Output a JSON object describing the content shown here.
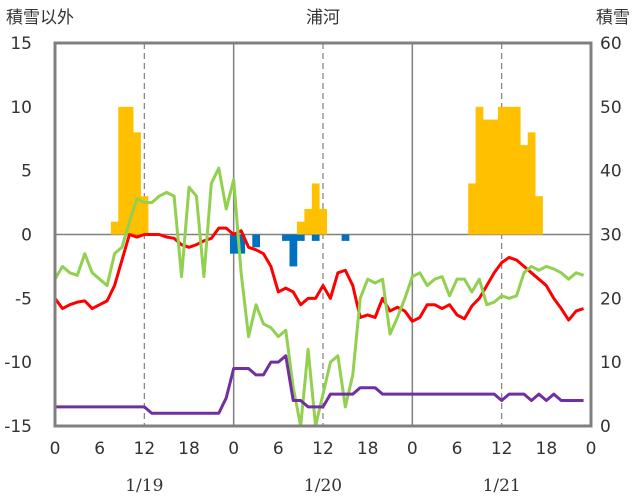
{
  "chart_data": {
    "type": "bar+line",
    "title": "浦河",
    "y_left_label": "積雪以外",
    "y_right_label": "積雪",
    "y_left_range": [
      -15,
      15
    ],
    "y_left_ticks": [
      15,
      10,
      5,
      0,
      -5,
      -10,
      -15
    ],
    "y_right_range": [
      0,
      60
    ],
    "y_right_ticks": [
      60,
      50,
      40,
      30,
      20,
      10,
      0
    ],
    "x_range_hours": [
      0,
      72
    ],
    "x_tick_labels": [
      "0",
      "6",
      "12",
      "18",
      "0",
      "6",
      "12",
      "18",
      "0",
      "6",
      "12",
      "18",
      "0"
    ],
    "date_labels": [
      {
        "label": "1/19",
        "hour": 12
      },
      {
        "label": "1/20",
        "hour": 36
      },
      {
        "label": "1/21",
        "hour": 60
      }
    ],
    "grid": {
      "day_boundaries": [
        24,
        48
      ],
      "dashed_at": [
        12,
        36,
        60
      ],
      "zero_line": true
    },
    "colors": {
      "snow_bar": "#FFC000",
      "precip_bar": "#0070C0",
      "red_line": "#FF0000",
      "green_line": "#92D050",
      "purple_line": "#7030A0",
      "frame": "#808080"
    },
    "series": [
      {
        "kind": "bar",
        "axis": "left",
        "color": "#FFC000",
        "points": [
          [
            8,
            1
          ],
          [
            9,
            10
          ],
          [
            10,
            10
          ],
          [
            11,
            8
          ],
          [
            12,
            3
          ],
          [
            33,
            1
          ],
          [
            34,
            2
          ],
          [
            35,
            4
          ],
          [
            36,
            2
          ],
          [
            56,
            4
          ],
          [
            57,
            10
          ],
          [
            58,
            9
          ],
          [
            59,
            9
          ],
          [
            60,
            10
          ],
          [
            61,
            10
          ],
          [
            62,
            10
          ],
          [
            63,
            7
          ],
          [
            64,
            8
          ],
          [
            65,
            3
          ]
        ]
      },
      {
        "kind": "bar",
        "axis": "left",
        "color": "#0070C0",
        "points": [
          [
            24,
            -1.5
          ],
          [
            25,
            -1.5
          ],
          [
            27,
            -1
          ],
          [
            31,
            -0.5
          ],
          [
            32,
            -2.5
          ],
          [
            33,
            -0.5
          ],
          [
            35,
            -0.5
          ],
          [
            39,
            -0.5
          ]
        ]
      },
      {
        "kind": "line",
        "axis": "left",
        "color": "#FF0000",
        "points": [
          [
            0,
            -5
          ],
          [
            1,
            -5.8
          ],
          [
            2,
            -5.5
          ],
          [
            3,
            -5.3
          ],
          [
            4,
            -5.2
          ],
          [
            5,
            -5.8
          ],
          [
            6,
            -5.5
          ],
          [
            7,
            -5.2
          ],
          [
            8,
            -4
          ],
          [
            9,
            -2
          ],
          [
            10,
            0
          ],
          [
            11,
            -0.2
          ],
          [
            12,
            0
          ],
          [
            13,
            0
          ],
          [
            14,
            0
          ],
          [
            15,
            -0.2
          ],
          [
            16,
            -0.3
          ],
          [
            17,
            -0.8
          ],
          [
            18,
            -1
          ],
          [
            19,
            -0.8
          ],
          [
            20,
            -0.5
          ],
          [
            21,
            -0.3
          ],
          [
            22,
            0.5
          ],
          [
            23,
            0.5
          ],
          [
            24,
            0
          ],
          [
            25,
            0.3
          ],
          [
            26,
            -1
          ],
          [
            27,
            -1.2
          ],
          [
            28,
            -1.5
          ],
          [
            29,
            -2.5
          ],
          [
            30,
            -4.5
          ],
          [
            31,
            -4.2
          ],
          [
            32,
            -4.5
          ],
          [
            33,
            -5.5
          ],
          [
            34,
            -5
          ],
          [
            35,
            -5
          ],
          [
            36,
            -4
          ],
          [
            37,
            -5
          ],
          [
            38,
            -3
          ],
          [
            39,
            -2.8
          ],
          [
            40,
            -4
          ],
          [
            41,
            -6.5
          ],
          [
            42,
            -6.3
          ],
          [
            43,
            -6.5
          ],
          [
            44,
            -5
          ],
          [
            45,
            -6
          ],
          [
            46,
            -5.7
          ],
          [
            47,
            -6
          ],
          [
            48,
            -6.8
          ],
          [
            49,
            -6.5
          ],
          [
            50,
            -5.5
          ],
          [
            51,
            -5.5
          ],
          [
            52,
            -5.8
          ],
          [
            53,
            -5.5
          ],
          [
            54,
            -6.3
          ],
          [
            55,
            -6.6
          ],
          [
            56,
            -5.6
          ],
          [
            57,
            -5
          ],
          [
            58,
            -4
          ],
          [
            59,
            -3
          ],
          [
            60,
            -2.2
          ],
          [
            61,
            -1.8
          ],
          [
            62,
            -2
          ],
          [
            63,
            -2.5
          ],
          [
            64,
            -3
          ],
          [
            65,
            -3.5
          ],
          [
            66,
            -4
          ],
          [
            67,
            -5
          ],
          [
            68,
            -5.8
          ],
          [
            69,
            -6.7
          ],
          [
            70,
            -6
          ],
          [
            71,
            -5.8
          ]
        ]
      },
      {
        "kind": "line",
        "axis": "left",
        "color": "#92D050",
        "points": [
          [
            0,
            -3.5
          ],
          [
            1,
            -2.5
          ],
          [
            2,
            -3
          ],
          [
            3,
            -3.2
          ],
          [
            4,
            -1.5
          ],
          [
            5,
            -3
          ],
          [
            6,
            -3.5
          ],
          [
            7,
            -4
          ],
          [
            8,
            -1.5
          ],
          [
            9,
            -1
          ],
          [
            10,
            1
          ],
          [
            11,
            2.8
          ],
          [
            12,
            2.5
          ],
          [
            13,
            2.5
          ],
          [
            14,
            3
          ],
          [
            15,
            3.3
          ],
          [
            16,
            3
          ],
          [
            17,
            -3.3
          ],
          [
            18,
            3.7
          ],
          [
            19,
            3
          ],
          [
            20,
            -3.3
          ],
          [
            21,
            4
          ],
          [
            22,
            5.2
          ],
          [
            23,
            2
          ],
          [
            24,
            4.3
          ],
          [
            25,
            -3
          ],
          [
            26,
            -8
          ],
          [
            27,
            -5.5
          ],
          [
            28,
            -7
          ],
          [
            29,
            -7.3
          ],
          [
            30,
            -8
          ],
          [
            31,
            -7.5
          ],
          [
            32,
            -12
          ],
          [
            33,
            -15
          ],
          [
            34,
            -9
          ],
          [
            35,
            -15
          ],
          [
            36,
            -12.5
          ],
          [
            37,
            -10
          ],
          [
            38,
            -9.5
          ],
          [
            39,
            -13.5
          ],
          [
            40,
            -11
          ],
          [
            41,
            -5
          ],
          [
            42,
            -3.5
          ],
          [
            43,
            -3.8
          ],
          [
            44,
            -3.5
          ],
          [
            45,
            -7.8
          ],
          [
            46,
            -6.5
          ],
          [
            47,
            -5
          ],
          [
            48,
            -3.3
          ],
          [
            49,
            -3
          ],
          [
            50,
            -4
          ],
          [
            51,
            -3.5
          ],
          [
            52,
            -3.3
          ],
          [
            53,
            -4.8
          ],
          [
            54,
            -3.5
          ],
          [
            55,
            -3.5
          ],
          [
            56,
            -4.5
          ],
          [
            57,
            -3.5
          ],
          [
            58,
            -5.5
          ],
          [
            59,
            -5.3
          ],
          [
            60,
            -4.8
          ],
          [
            61,
            -5
          ],
          [
            62,
            -4.8
          ],
          [
            63,
            -3
          ],
          [
            64,
            -2.5
          ],
          [
            65,
            -2.8
          ],
          [
            66,
            -2.5
          ],
          [
            67,
            -2.7
          ],
          [
            68,
            -3
          ],
          [
            69,
            -3.5
          ],
          [
            70,
            -3
          ],
          [
            71,
            -3.2
          ]
        ]
      },
      {
        "kind": "line",
        "axis": "left",
        "color": "#7030A0",
        "points": [
          [
            0,
            -13.5
          ],
          [
            1,
            -13.5
          ],
          [
            2,
            -13.5
          ],
          [
            3,
            -13.5
          ],
          [
            4,
            -13.5
          ],
          [
            5,
            -13.5
          ],
          [
            6,
            -13.5
          ],
          [
            7,
            -13.5
          ],
          [
            8,
            -13.5
          ],
          [
            9,
            -13.5
          ],
          [
            10,
            -13.5
          ],
          [
            11,
            -13.5
          ],
          [
            12,
            -13.5
          ],
          [
            13,
            -14
          ],
          [
            14,
            -14
          ],
          [
            15,
            -14
          ],
          [
            16,
            -14
          ],
          [
            17,
            -14
          ],
          [
            18,
            -14
          ],
          [
            19,
            -14
          ],
          [
            20,
            -14
          ],
          [
            21,
            -14
          ],
          [
            22,
            -14
          ],
          [
            23,
            -12.8
          ],
          [
            24,
            -10.5
          ],
          [
            25,
            -10.5
          ],
          [
            26,
            -10.5
          ],
          [
            27,
            -11
          ],
          [
            28,
            -11
          ],
          [
            29,
            -10
          ],
          [
            30,
            -10
          ],
          [
            31,
            -9.5
          ],
          [
            32,
            -13
          ],
          [
            33,
            -13
          ],
          [
            34,
            -13.5
          ],
          [
            35,
            -13.5
          ],
          [
            36,
            -13.5
          ],
          [
            37,
            -12.5
          ],
          [
            38,
            -12.5
          ],
          [
            39,
            -12.5
          ],
          [
            40,
            -12.5
          ],
          [
            41,
            -12
          ],
          [
            42,
            -12
          ],
          [
            43,
            -12
          ],
          [
            44,
            -12.5
          ],
          [
            45,
            -12.5
          ],
          [
            46,
            -12.5
          ],
          [
            47,
            -12.5
          ],
          [
            48,
            -12.5
          ],
          [
            49,
            -12.5
          ],
          [
            50,
            -12.5
          ],
          [
            51,
            -12.5
          ],
          [
            52,
            -12.5
          ],
          [
            53,
            -12.5
          ],
          [
            54,
            -12.5
          ],
          [
            55,
            -12.5
          ],
          [
            56,
            -12.5
          ],
          [
            57,
            -12.5
          ],
          [
            58,
            -12.5
          ],
          [
            59,
            -12.5
          ],
          [
            60,
            -13
          ],
          [
            61,
            -12.5
          ],
          [
            62,
            -12.5
          ],
          [
            63,
            -12.5
          ],
          [
            64,
            -13
          ],
          [
            65,
            -12.5
          ],
          [
            66,
            -13
          ],
          [
            67,
            -12.5
          ],
          [
            68,
            -13
          ],
          [
            69,
            -13
          ],
          [
            70,
            -13
          ],
          [
            71,
            -13
          ]
        ]
      }
    ]
  }
}
